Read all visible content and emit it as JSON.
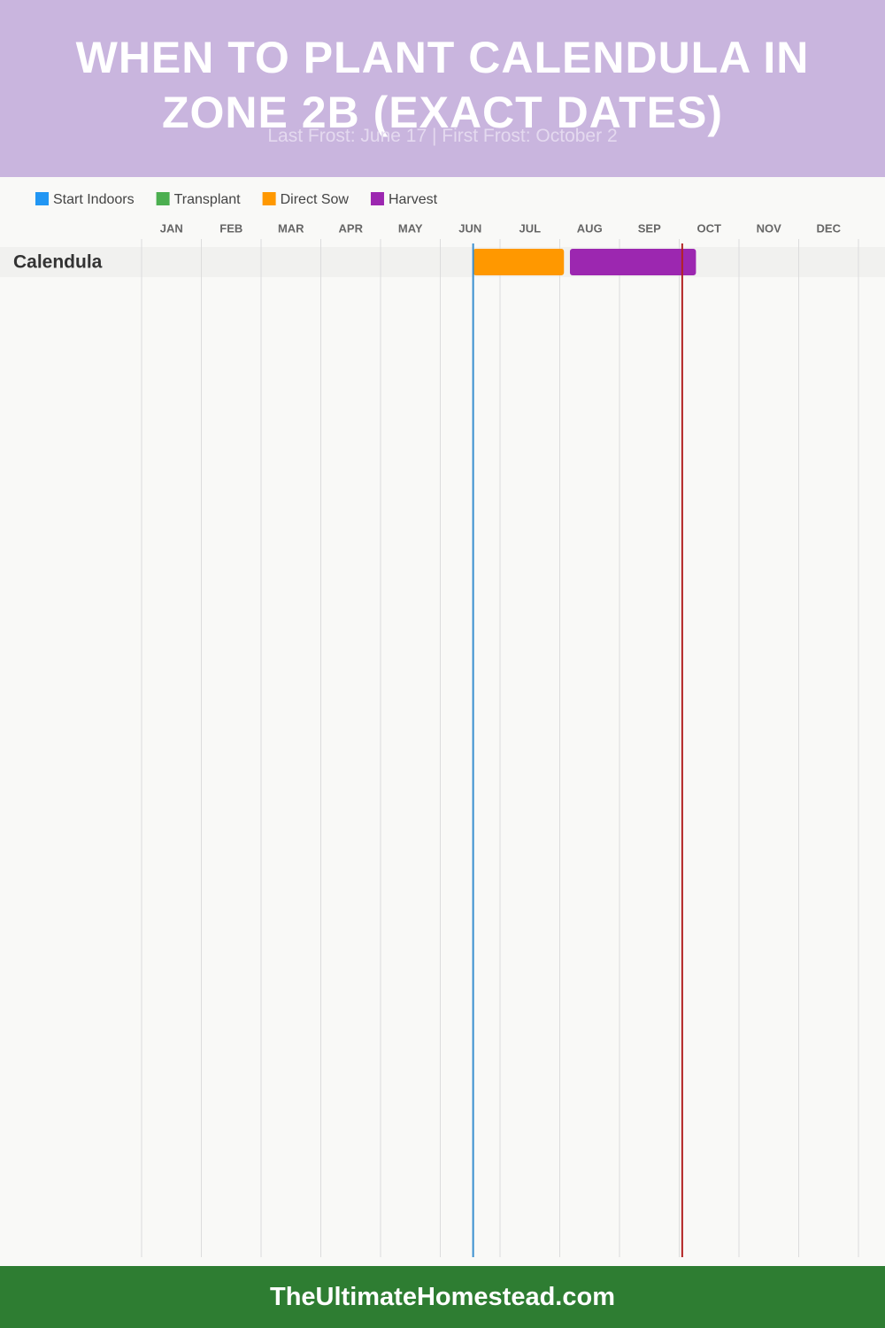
{
  "chart_data": {
    "type": "gantt",
    "title": "WHEN TO PLANT CALENDULA IN ZONE 2B (EXACT DATES)",
    "subtitle": "Last Frost: June 17 | First Frost: October 2",
    "categories": [
      "JAN",
      "FEB",
      "MAR",
      "APR",
      "MAY",
      "JUN",
      "JUL",
      "AUG",
      "SEP",
      "OCT",
      "NOV",
      "DEC"
    ],
    "xlim": [
      0,
      12
    ],
    "rows": [
      "Calendula"
    ],
    "series": [
      {
        "name": "Start Indoors",
        "color": "#2196f3",
        "start": [
          null
        ],
        "end": [
          null
        ]
      },
      {
        "name": "Transplant",
        "color": "#4caf50",
        "start": [
          null
        ],
        "end": [
          null
        ]
      },
      {
        "name": "Direct Sow",
        "color": "#ff9800",
        "start": [
          5.55
        ],
        "end": [
          7.07
        ]
      },
      {
        "name": "Harvest",
        "color": "#9c27b0",
        "start": [
          7.17
        ],
        "end": [
          9.28
        ]
      }
    ],
    "markers": [
      {
        "value": 5.55,
        "color": "#3a8fd0"
      },
      {
        "value": 9.05,
        "color": "#b22222"
      }
    ],
    "grid": true,
    "footer": "TheUltimateHomestead.com"
  }
}
